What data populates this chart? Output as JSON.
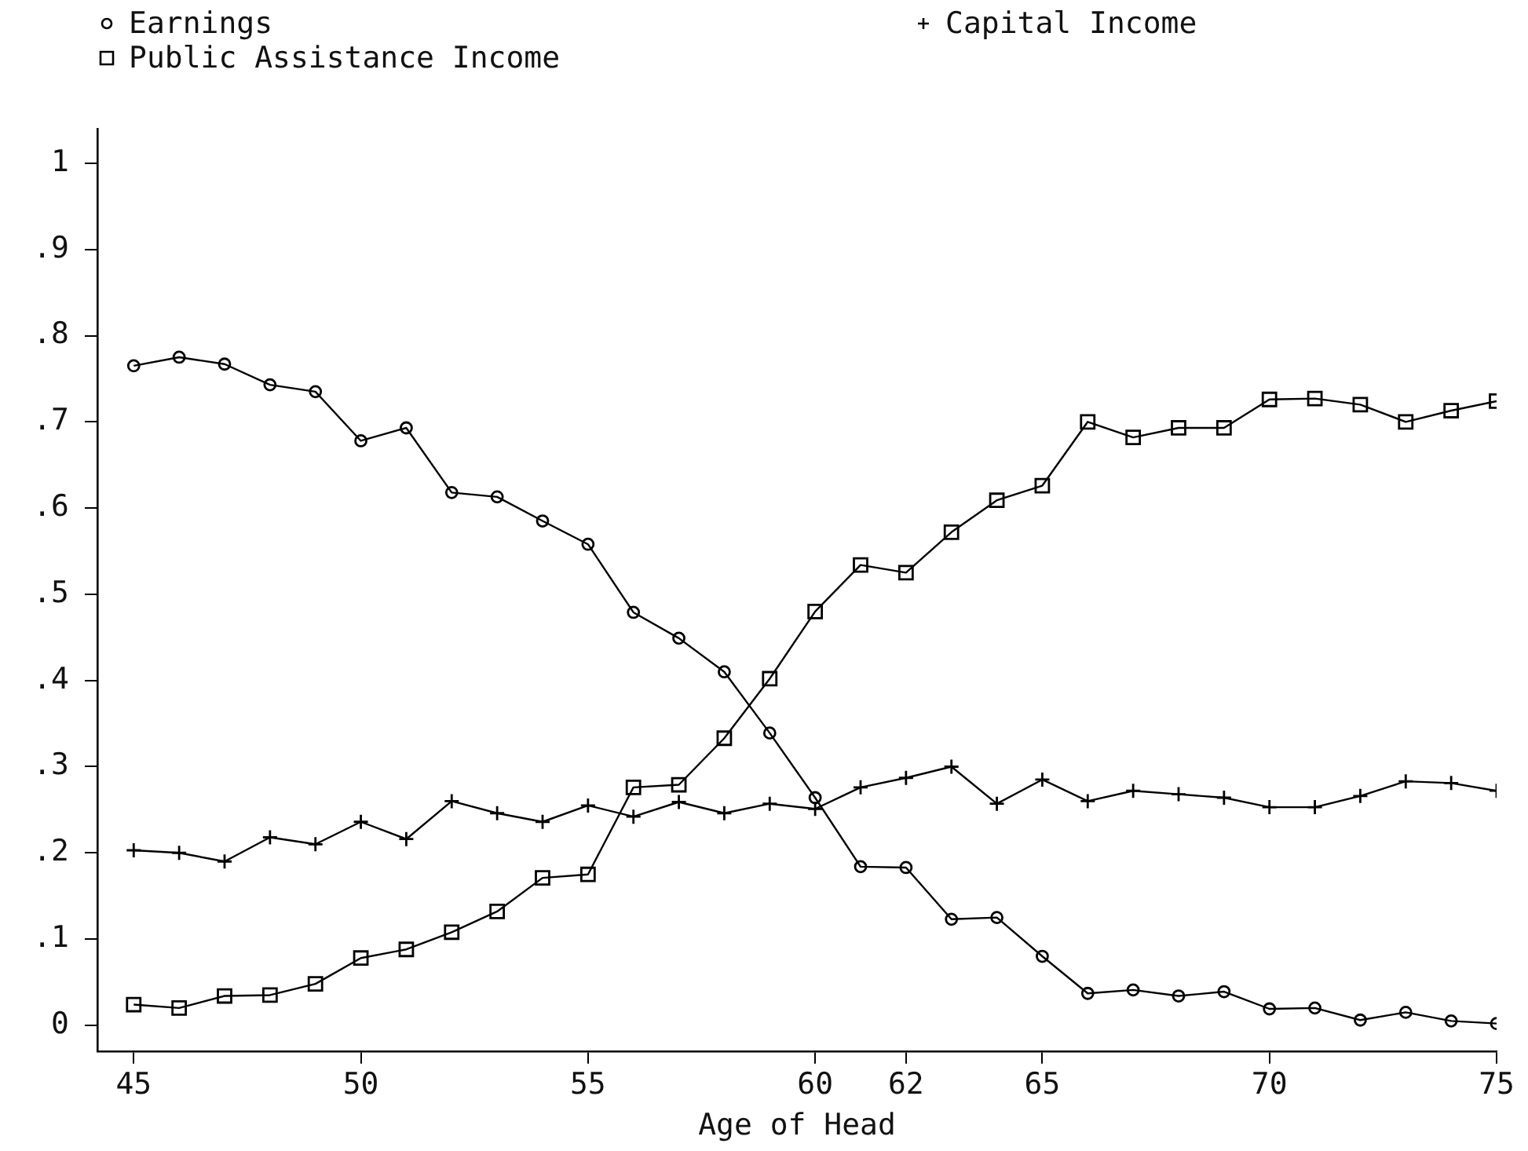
{
  "chart_data": {
    "type": "line",
    "xlabel": "Age of Head",
    "x": [
      45,
      46,
      47,
      48,
      49,
      50,
      51,
      52,
      53,
      54,
      55,
      56,
      57,
      58,
      59,
      60,
      61,
      62,
      63,
      64,
      65,
      66,
      67,
      68,
      69,
      70,
      71,
      72,
      73,
      74,
      75
    ],
    "xlim": [
      44.2,
      75
    ],
    "xticks": [
      45,
      50,
      55,
      60,
      62,
      65,
      70,
      75
    ],
    "ylim": [
      -0.03,
      1.04
    ],
    "yticks": [
      0,
      {
        "value": 0.1,
        "label": ".1"
      },
      {
        "value": 0.2,
        "label": ".2"
      },
      {
        "value": 0.3,
        "label": ".3"
      },
      {
        "value": 0.4,
        "label": ".4"
      },
      {
        "value": 0.5,
        "label": ".5"
      },
      {
        "value": 0.6,
        "label": ".6"
      },
      {
        "value": 0.7,
        "label": ".7"
      },
      {
        "value": 0.8,
        "label": ".8"
      },
      {
        "value": 0.9,
        "label": ".9"
      },
      1
    ],
    "legend": "top left",
    "series": [
      {
        "name": "Earnings",
        "color": "#000000",
        "marker": "circle",
        "values": [
          0.765,
          0.775,
          0.767,
          0.743,
          0.735,
          0.678,
          0.693,
          0.618,
          0.613,
          0.585,
          0.558,
          0.479,
          0.449,
          0.41,
          0.339,
          0.264,
          0.184,
          0.183,
          0.123,
          0.125,
          0.08,
          0.037,
          0.041,
          0.034,
          0.039,
          0.019,
          0.02,
          0.006,
          0.015,
          0.005,
          0.002
        ]
      },
      {
        "name": "Public Assistance Income",
        "color": "#000000",
        "marker": "square",
        "values": [
          0.024,
          0.02,
          0.034,
          0.035,
          0.048,
          0.078,
          0.088,
          0.108,
          0.132,
          0.171,
          0.175,
          0.276,
          0.279,
          0.333,
          0.402,
          0.48,
          0.534,
          0.525,
          0.572,
          0.609,
          0.626,
          0.7,
          0.682,
          0.693,
          0.693,
          0.726,
          0.727,
          0.72,
          0.7,
          0.713,
          0.724
        ]
      },
      {
        "name": "Capital Income",
        "color": "#000000",
        "marker": "cross",
        "values": [
          0.203,
          0.2,
          0.19,
          0.218,
          0.21,
          0.236,
          0.216,
          0.26,
          0.246,
          0.236,
          0.255,
          0.242,
          0.259,
          0.246,
          0.257,
          0.251,
          0.276,
          0.287,
          0.3,
          0.257,
          0.285,
          0.26,
          0.272,
          0.268,
          0.264,
          0.253,
          0.253,
          0.266,
          0.283,
          0.281,
          0.272
        ]
      }
    ]
  }
}
